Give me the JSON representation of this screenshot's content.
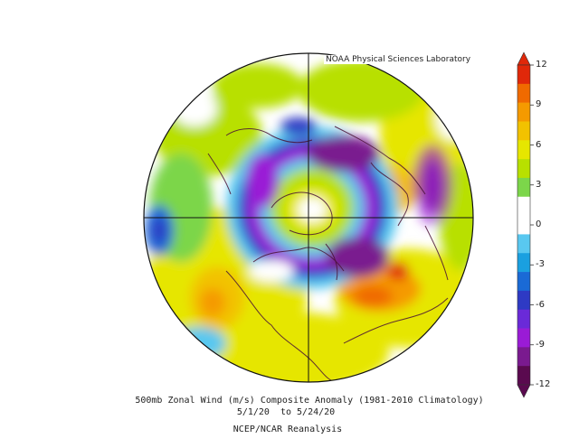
{
  "map": {
    "title": "500mb Zonal Wind (m/s) Composite Anomaly (1981-2010 Climatology)",
    "date_range": "5/1/20  to 5/24/20",
    "dataset": "NCEP/NCAR Reanalysis",
    "credit": "NOAA Physical Sciences Laboratory",
    "projection": "north-polar-stereographic",
    "variable": "500mb zonal wind anomaly",
    "units": "m/s"
  },
  "colorbar": {
    "ticks": [
      "12",
      "9",
      "6",
      "3",
      "0",
      "-3",
      "-6",
      "-9",
      "-12"
    ],
    "bins": [
      {
        "color": "#5a0a4f"
      },
      {
        "color": "#7a1a8f"
      },
      {
        "color": "#9a1bd6"
      },
      {
        "color": "#6a2ad8"
      },
      {
        "color": "#2e3ac4"
      },
      {
        "color": "#1a6ad6"
      },
      {
        "color": "#1aa0e0"
      },
      {
        "color": "#59c8f0"
      },
      {
        "color": "#ffffff"
      },
      {
        "color": "#ffffff"
      },
      {
        "color": "#7cd64a"
      },
      {
        "color": "#b8e000"
      },
      {
        "color": "#e6e600"
      },
      {
        "color": "#f2c200"
      },
      {
        "color": "#f59a00"
      },
      {
        "color": "#f06a00"
      },
      {
        "color": "#e0280a"
      }
    ]
  }
}
